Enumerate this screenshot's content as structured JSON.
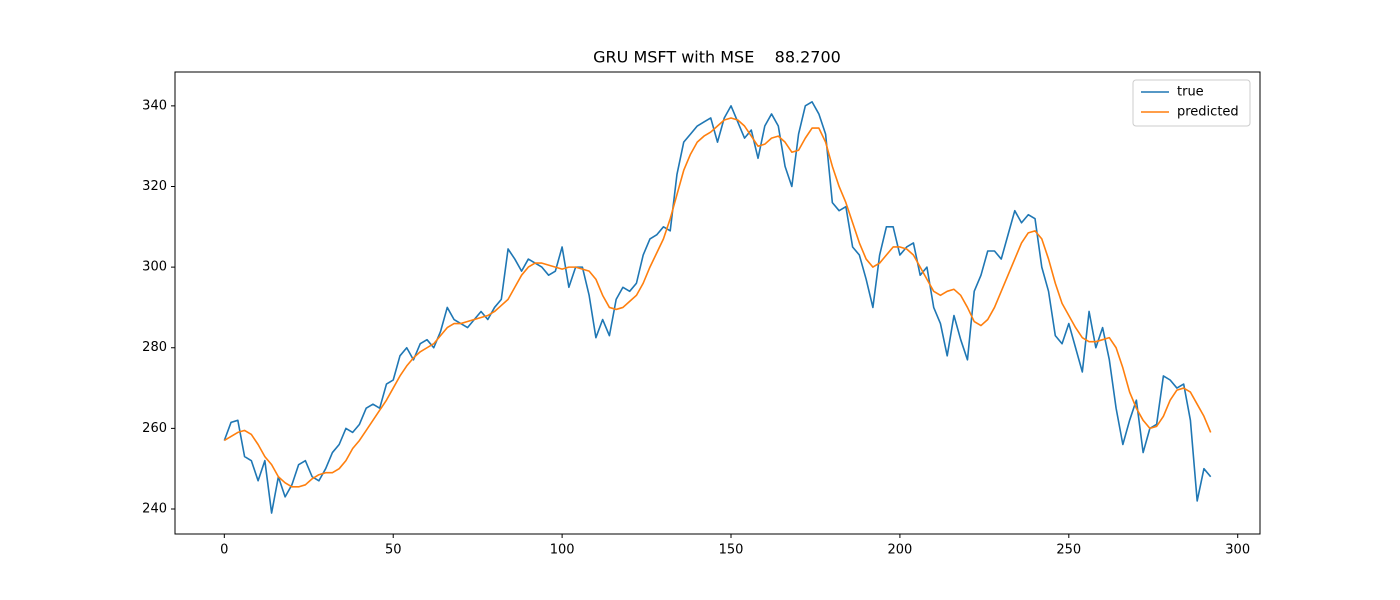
{
  "chart_data": {
    "type": "line",
    "title": "GRU MSFT with MSE    88.2700",
    "x": [
      0,
      2,
      4,
      6,
      8,
      10,
      12,
      14,
      16,
      18,
      20,
      22,
      24,
      26,
      28,
      30,
      32,
      34,
      36,
      38,
      40,
      42,
      44,
      46,
      48,
      50,
      52,
      54,
      56,
      58,
      60,
      62,
      64,
      66,
      68,
      70,
      72,
      74,
      76,
      78,
      80,
      82,
      84,
      86,
      88,
      90,
      92,
      94,
      96,
      98,
      100,
      102,
      104,
      106,
      108,
      110,
      112,
      114,
      116,
      118,
      120,
      122,
      124,
      126,
      128,
      130,
      132,
      134,
      136,
      138,
      140,
      142,
      144,
      146,
      148,
      150,
      152,
      154,
      156,
      158,
      160,
      162,
      164,
      166,
      168,
      170,
      172,
      174,
      176,
      178,
      180,
      182,
      184,
      186,
      188,
      190,
      192,
      194,
      196,
      198,
      200,
      202,
      204,
      206,
      208,
      210,
      212,
      214,
      216,
      218,
      220,
      222,
      224,
      226,
      228,
      230,
      232,
      234,
      236,
      238,
      240,
      242,
      244,
      246,
      248,
      250,
      252,
      254,
      256,
      258,
      260,
      262,
      264,
      266,
      268,
      270,
      272,
      274,
      276,
      278,
      280,
      282,
      284,
      286,
      288,
      290,
      292
    ],
    "series": [
      {
        "name": "true",
        "color": "#1f77b4",
        "values": [
          257,
          261.5,
          262,
          253,
          252,
          247,
          252,
          239,
          248,
          243,
          246,
          251,
          252,
          248,
          247,
          250,
          254,
          256,
          260,
          259,
          261,
          265,
          266,
          265,
          271,
          272,
          278,
          280,
          277,
          281,
          282,
          280,
          284,
          290,
          287,
          286,
          285,
          287,
          289,
          287,
          290,
          292,
          304.5,
          302,
          299,
          302,
          301,
          300,
          298,
          299,
          305,
          295,
          300,
          300,
          293,
          282.5,
          287,
          283,
          292,
          295,
          294,
          296,
          303,
          307,
          308,
          310,
          309,
          323,
          331,
          333,
          335,
          336,
          337,
          331,
          337,
          340,
          336,
          332,
          334,
          327,
          335,
          338,
          335,
          325,
          320,
          333,
          340,
          341,
          338,
          333,
          316,
          314,
          315,
          305,
          303,
          297,
          290,
          303,
          310,
          310,
          303,
          305,
          306,
          298,
          300,
          290,
          286,
          278,
          288,
          282,
          277,
          294,
          298,
          304,
          304,
          302,
          308,
          314,
          311,
          313,
          312,
          300,
          294,
          283,
          281,
          286,
          280,
          274,
          289,
          280,
          285,
          277,
          265,
          256,
          262,
          267,
          254,
          260,
          261,
          273,
          272,
          270,
          271,
          262,
          242,
          250,
          248
        ]
      },
      {
        "name": "predicted",
        "color": "#ff7f0e",
        "values": [
          257,
          258,
          259,
          259.5,
          258.5,
          256,
          253,
          251,
          248,
          246.5,
          245.5,
          245.5,
          246,
          247.5,
          248.5,
          249,
          249,
          250,
          252,
          255,
          257,
          259.5,
          262,
          264.5,
          267,
          270,
          273,
          275.5,
          277.5,
          279,
          280,
          281,
          283,
          285,
          286,
          286,
          286.5,
          287,
          287.5,
          288,
          289,
          290.5,
          292,
          295,
          298,
          300,
          301,
          301,
          300.5,
          300,
          299.5,
          300,
          300,
          299.5,
          299,
          297,
          293,
          290,
          289.5,
          290,
          291.5,
          293,
          296,
          300,
          303.5,
          307,
          312,
          318,
          324,
          328,
          331,
          332.5,
          333.5,
          335,
          336.5,
          337,
          336.5,
          335,
          332.5,
          330,
          330.5,
          332,
          332.5,
          331,
          328.5,
          329,
          332,
          334.5,
          334.5,
          331,
          325,
          320,
          316,
          311,
          306,
          302,
          300,
          301,
          303,
          305,
          305,
          304.5,
          303,
          300,
          297,
          294,
          293,
          294,
          294.5,
          293,
          290,
          286.5,
          285.5,
          287,
          290,
          294,
          298,
          302,
          306,
          308.5,
          309,
          307,
          302,
          296,
          291,
          288,
          285,
          282.5,
          281.5,
          281.5,
          282,
          282.5,
          280,
          275,
          269,
          265,
          262,
          260,
          260.5,
          263,
          267,
          269.5,
          270,
          269,
          266,
          263,
          259
        ]
      }
    ],
    "xlim": [
      -14.6,
      306.6
    ],
    "xticks": [
      0,
      50,
      100,
      150,
      200,
      250,
      300
    ],
    "ylim": [
      233.8,
      348.4
    ],
    "yticks": [
      240,
      260,
      280,
      300,
      320,
      340
    ],
    "legend": "upper right"
  }
}
